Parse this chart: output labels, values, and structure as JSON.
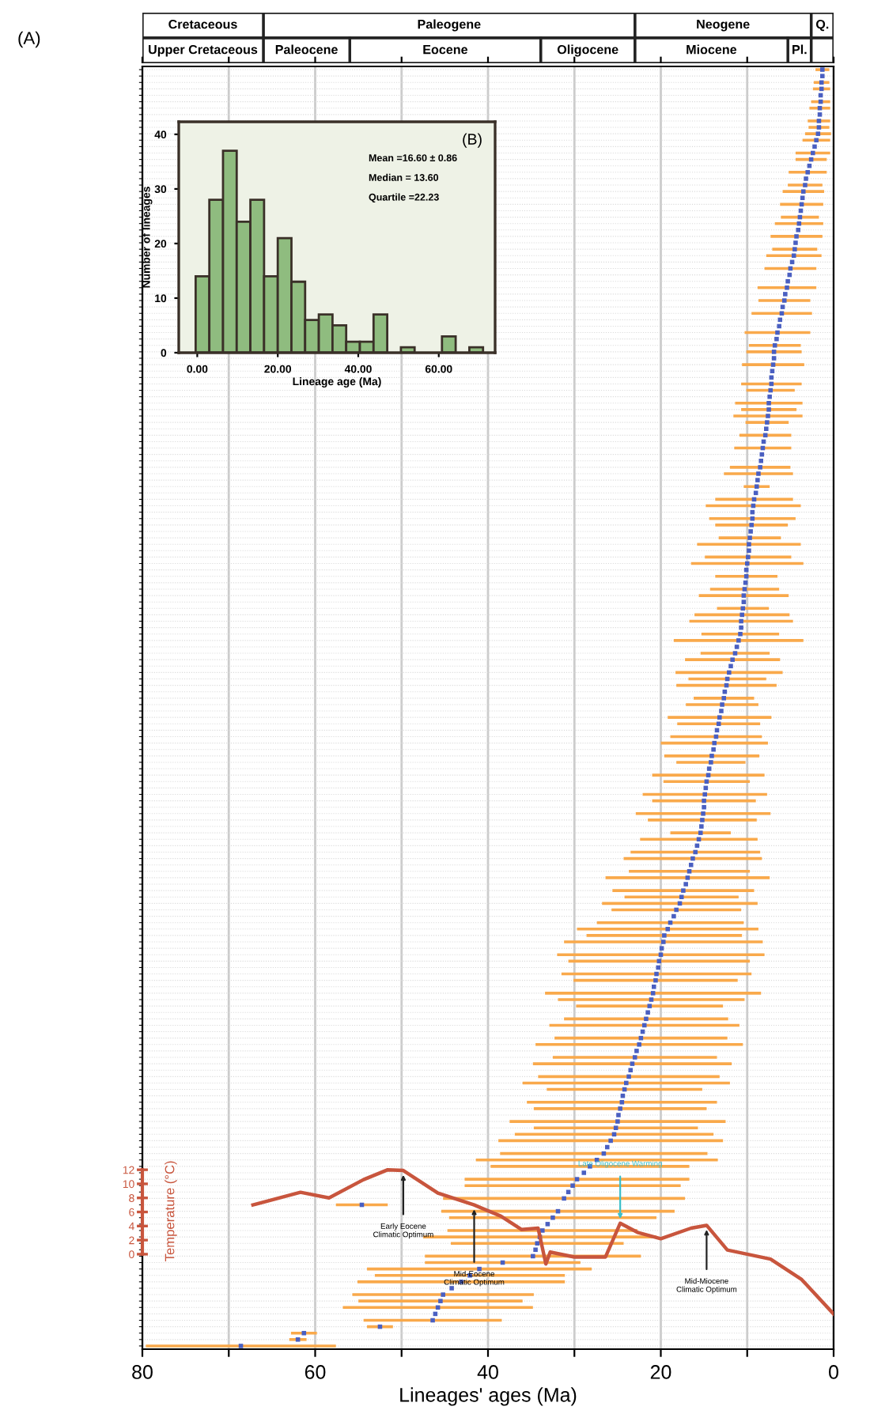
{
  "chart_data": [
    {
      "type": "scatter",
      "orientation": "horizontal",
      "xlabel": "Lineages' ages (Ma)",
      "color": "#4a5fc1",
      "marker": "square",
      "grid": true,
      "xlim": [
        80,
        0
      ],
      "xticks": [
        80,
        {
          "value": 70,
          "label": null
        },
        60,
        {
          "value": 50,
          "label": null
        },
        40,
        {
          "value": 30,
          "label": null
        },
        20,
        {
          "value": 10,
          "label": null
        },
        0
      ],
      "annotations": [
        "(A)"
      ],
      "categories": [
        null,
        null,
        null,
        null,
        null,
        null,
        null,
        null,
        null,
        null,
        null,
        null,
        null,
        null,
        null,
        null,
        null,
        null,
        null,
        null,
        null,
        null,
        null,
        null,
        null,
        null,
        null,
        null,
        null,
        null,
        null,
        null,
        null,
        null,
        null,
        null,
        null,
        null,
        null,
        null,
        null,
        null,
        null,
        null,
        null,
        null,
        null,
        null,
        null,
        null,
        null,
        null,
        null,
        null,
        null,
        null,
        null,
        null,
        null,
        null,
        null,
        null,
        null,
        null,
        null,
        null,
        null,
        null,
        null,
        null,
        null,
        null,
        null,
        null,
        null,
        null,
        null,
        null,
        null,
        null,
        null,
        null,
        null,
        null,
        null,
        null,
        null,
        null,
        null,
        null,
        null,
        null,
        null,
        null,
        null,
        null,
        null,
        null,
        null,
        null,
        null,
        null,
        null,
        null,
        null,
        null,
        null,
        null,
        null,
        null,
        null,
        null,
        null,
        null,
        null,
        null,
        null,
        null,
        null,
        null,
        null,
        null,
        null,
        null,
        null,
        null,
        null,
        null,
        null,
        null,
        null,
        null,
        null,
        null,
        null,
        null,
        null,
        null,
        null,
        null,
        null,
        null,
        null,
        null,
        null,
        null,
        null,
        null,
        null,
        null,
        null,
        null,
        null,
        null,
        null,
        null,
        null,
        null,
        null,
        null,
        null,
        null,
        null,
        null,
        null,
        null,
        null,
        null,
        null,
        null,
        null,
        null,
        null,
        null,
        null,
        null,
        null,
        null,
        null,
        null,
        null,
        null,
        null,
        null,
        null,
        null,
        null,
        null,
        null,
        null,
        null,
        null,
        null,
        null,
        null,
        null,
        null,
        null,
        null,
        null
      ],
      "values": [
        1.3,
        1.3,
        1.4,
        1.4,
        1.5,
        1.5,
        1.6,
        1.6,
        1.7,
        1.7,
        1.8,
        2.0,
        2.2,
        2.4,
        2.6,
        2.8,
        3.0,
        3.2,
        3.3,
        3.5,
        3.6,
        3.7,
        3.8,
        3.9,
        4.0,
        4.1,
        4.3,
        4.4,
        4.5,
        4.6,
        4.8,
        5.0,
        5.1,
        5.3,
        5.4,
        5.6,
        5.7,
        5.9,
        6.0,
        6.2,
        6.3,
        6.5,
        6.6,
        6.8,
        6.9,
        6.9,
        7.0,
        7.1,
        7.2,
        7.2,
        7.3,
        7.4,
        7.5,
        7.5,
        7.6,
        7.7,
        7.8,
        7.9,
        8.1,
        8.2,
        8.3,
        8.4,
        8.5,
        8.7,
        8.8,
        8.9,
        9.0,
        9.2,
        9.3,
        9.4,
        9.4,
        9.5,
        9.6,
        9.7,
        9.8,
        9.8,
        9.9,
        10.0,
        10.1,
        10.1,
        10.2,
        10.3,
        10.4,
        10.4,
        10.5,
        10.6,
        10.7,
        10.7,
        10.8,
        11.0,
        11.2,
        11.4,
        11.7,
        11.9,
        12.1,
        12.3,
        12.4,
        12.6,
        12.7,
        12.9,
        13.0,
        13.2,
        13.3,
        13.5,
        13.6,
        13.8,
        13.9,
        14.1,
        14.2,
        14.4,
        14.5,
        14.7,
        14.8,
        14.9,
        15.0,
        15.0,
        15.1,
        15.2,
        15.3,
        15.4,
        15.6,
        15.8,
        16.0,
        16.3,
        16.5,
        16.7,
        16.9,
        17.1,
        17.4,
        17.6,
        17.8,
        18.2,
        18.5,
        18.9,
        19.2,
        19.6,
        19.7,
        19.9,
        20.0,
        20.2,
        20.3,
        20.5,
        20.6,
        20.8,
        20.9,
        21.1,
        21.3,
        21.5,
        21.7,
        21.9,
        22.1,
        22.3,
        22.5,
        22.8,
        23.0,
        23.3,
        23.5,
        23.7,
        24.0,
        24.2,
        24.4,
        24.5,
        24.7,
        24.9,
        25.0,
        25.2,
        25.4,
        25.8,
        26.2,
        26.6,
        27.4,
        28.2,
        28.9,
        29.7,
        30.2,
        30.7,
        31.2,
        54.6,
        31.9,
        32.5,
        33.1,
        33.7,
        34.0,
        34.3,
        34.5,
        34.8,
        38.3,
        41.0,
        42.1,
        43.1,
        44.2,
        45.2,
        45.5,
        45.8,
        46.1,
        46.4,
        52.5,
        61.3,
        62.0,
        68.6
      ],
      "errors": [
        0.8,
        null,
        0.9,
        1.0,
        null,
        1.1,
        1.2,
        null,
        1.3,
        1.2,
        1.5,
        1.6,
        null,
        2.0,
        1.8,
        null,
        2.2,
        null,
        2.0,
        2.4,
        null,
        2.5,
        null,
        2.2,
        2.8,
        null,
        3.0,
        null,
        2.6,
        3.2,
        null,
        3.0,
        null,
        null,
        3.4,
        null,
        3.0,
        null,
        3.5,
        null,
        null,
        3.8,
        null,
        3.0,
        3.2,
        null,
        3.6,
        null,
        null,
        3.5,
        2.8,
        null,
        3.9,
        3.2,
        4.0,
        2.5,
        null,
        3.0,
        null,
        3.3,
        null,
        null,
        3.5,
        4.0,
        null,
        1.5,
        null,
        4.5,
        5.5,
        null,
        5.0,
        4.2,
        null,
        3.6,
        6.0,
        null,
        5.0,
        6.5,
        null,
        3.6,
        null,
        4.0,
        5.2,
        null,
        3.0,
        5.5,
        6.0,
        null,
        4.5,
        7.5,
        null,
        4.0,
        5.5,
        null,
        6.2,
        4.5,
        5.8,
        null,
        3.5,
        4.2,
        null,
        6.0,
        4.8,
        null,
        5.3,
        6.2,
        null,
        5.5,
        4.0,
        null,
        6.5,
        5.0,
        null,
        7.2,
        6.0,
        null,
        7.8,
        6.3,
        null,
        3.5,
        6.8,
        null,
        7.5,
        8.0,
        null,
        7.0,
        9.5,
        null,
        8.2,
        6.6,
        9.0,
        7.5,
        null,
        8.5,
        10.5,
        9.0,
        11.5,
        null,
        12.0,
        10.5,
        null,
        11.0,
        9.5,
        null,
        12.5,
        10.8,
        8.5,
        null,
        9.5,
        11.0,
        null,
        10.0,
        12.0,
        null,
        9.5,
        11.5,
        null,
        10.5,
        12.0,
        9.0,
        null,
        11.0,
        10.0,
        null,
        12.5,
        9.5,
        11.5,
        13.0,
        null,
        12.0,
        14.0,
        11.5,
        null,
        13.0,
        12.5,
        null,
        14.0,
        3.0,
        13.5,
        12.0,
        null,
        11.0,
        13.5,
        10.0,
        null,
        12.5,
        9.0,
        13.0,
        11.0,
        12.0,
        null,
        10.5,
        9.5,
        11.0,
        null,
        8.0,
        1.5,
        1.5,
        1.0,
        11.0
      ]
    },
    {
      "type": "line",
      "color": "#c8553d",
      "ylabel": "Temperature (°C)",
      "xlim": [
        80,
        0
      ],
      "ylim": [
        -13.5,
        20.9
      ],
      "yticks": [
        0,
        2,
        4,
        6,
        8,
        10,
        12
      ],
      "tick_labels": "y",
      "x": [
        67.2,
        61.7,
        58.4,
        54.4,
        51.6,
        49.8,
        45.8,
        41.6,
        38.5,
        36.1,
        34.2,
        33.3,
        32.8,
        30.0,
        26.4,
        24.7,
        22.7,
        20.0,
        16.5,
        14.7,
        12.3,
        7.3,
        3.7,
        0
      ],
      "values": [
        7.0,
        8.8,
        8.0,
        10.6,
        12.0,
        11.9,
        8.7,
        7.0,
        5.4,
        3.5,
        3.7,
        -1.4,
        0.3,
        -0.4,
        -0.4,
        4.4,
        3.1,
        2.2,
        3.7,
        4.1,
        0.6,
        -0.7,
        -3.6,
        -8.5
      ],
      "annotations": [
        {
          "text": "Early Eocene\nClimatic Optimum",
          "x": 49.8,
          "y": 11.9
        },
        {
          "text": "Mid-Eocene\nClimatic Optimum",
          "x": 41.6,
          "y": 7.0
        },
        {
          "text": "Late Oligocene Warming",
          "x": 24.7,
          "y": 4.4
        },
        {
          "text": "Mid-Miocene\nClimatic Optimum",
          "x": 14.7,
          "y": 4.1
        }
      ]
    },
    {
      "type": "histogram",
      "color": "#8fbc7f",
      "xlabel": "Lineage age (Ma)",
      "ylabel": "Number of lineages",
      "bins": [
        -0.4,
        3.0,
        6.4,
        9.8,
        13.2,
        16.6,
        20.0,
        23.4,
        26.8,
        30.2,
        33.6,
        37.0,
        40.4,
        43.8,
        47.2,
        50.6,
        54.0,
        57.4,
        60.8,
        64.2,
        67.6,
        71.0
      ],
      "values": [
        14,
        28,
        37,
        24,
        28,
        14,
        21,
        13,
        6,
        7,
        5,
        2,
        2,
        7,
        0,
        1,
        0,
        0,
        3,
        0,
        1
      ],
      "xlim": [
        -4.6,
        74
      ],
      "ylim": [
        0,
        42.3
      ],
      "xticks": [
        {
          "value": 0,
          "label": "0.00"
        },
        {
          "value": 20,
          "label": "20.00"
        },
        {
          "value": 40,
          "label": "40.00"
        },
        {
          "value": 60,
          "label": "60.00"
        }
      ],
      "yticks": [
        0,
        10,
        20,
        30,
        40
      ],
      "annotations": [
        "(B)",
        "Mean =16.60 ± 0.86",
        "Median = 13.60",
        "Quartile =22.23"
      ]
    },
    {
      "type": "bar",
      "orientation": "horizontal",
      "stacked": true,
      "categories": [
        null,
        null
      ],
      "xlim": [
        80,
        0
      ],
      "tick_labels": false,
      "series": [
        {
          "color": "#ffffff",
          "values": [
            2.6,
            2.6
          ],
          "value_labels": [
            "Q.",
            null
          ]
        },
        {
          "color": "#ffffff",
          "values": [
            20.4,
            2.7
          ],
          "value_labels": [
            "Neogene",
            "Pl."
          ]
        },
        {
          "color": "#ffffff",
          "values": [
            43,
            17.7
          ],
          "value_labels": [
            "Paleogene",
            "Miocene"
          ]
        },
        {
          "color": "#ffffff",
          "values": [
            14,
            10.9
          ],
          "value_labels": [
            "Cretaceous",
            "Oligocene"
          ]
        },
        {
          "color": "#ffffff",
          "values": [
            null,
            22.1
          ],
          "value_labels": [
            null,
            "Eocene"
          ]
        },
        {
          "color": "#ffffff",
          "values": [
            null,
            10
          ],
          "value_labels": [
            null,
            "Paleocene"
          ]
        },
        {
          "color": "#ffffff",
          "values": [
            null,
            14
          ],
          "value_labels": [
            null,
            "Upper Cretaceous"
          ]
        }
      ]
    }
  ]
}
